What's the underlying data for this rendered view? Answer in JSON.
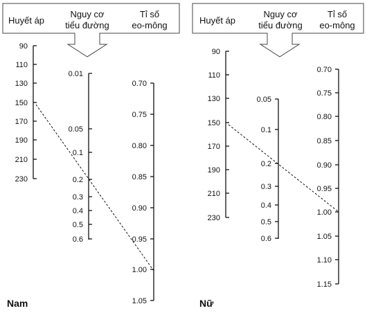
{
  "panels": [
    {
      "id": "male",
      "label": "Nam",
      "headers": {
        "bp": "Huyết áp",
        "risk": [
          "Nguy cơ",
          "tiểu đường"
        ],
        "whr": [
          "Tỉ số",
          "eo-mông"
        ]
      },
      "bp_ticks": [
        "90",
        "110",
        "130",
        "150",
        "170",
        "190",
        "210",
        "230"
      ],
      "risk_ticks": [
        "0.01",
        "0.05",
        "0.1",
        "0.2",
        "0.3",
        "0.4",
        "0.5",
        "0.6"
      ],
      "whr_ticks": [
        "0.70",
        "0.75",
        "0.80",
        "0.85",
        "0.90",
        "0.95",
        "1.00",
        "1.05"
      ],
      "example": {
        "bp": 150,
        "risk": 0.2,
        "whr": 1.0
      }
    },
    {
      "id": "female",
      "label": "Nữ",
      "headers": {
        "bp": "Huyết áp",
        "risk": [
          "Nguy cơ",
          "tiểu đường"
        ],
        "whr": [
          "Tỉ số",
          "eo-mông"
        ]
      },
      "bp_ticks": [
        "90",
        "110",
        "130",
        "150",
        "170",
        "190",
        "210",
        "230"
      ],
      "risk_ticks": [
        "0.05",
        "0.1",
        "0.2",
        "0.3",
        "0.4",
        "0.5",
        "0.6"
      ],
      "whr_ticks": [
        "0.70",
        "0.75",
        "0.80",
        "0.85",
        "0.90",
        "0.95",
        "1.00",
        "1.05",
        "1.10",
        "1.15"
      ],
      "example": {
        "bp": 150,
        "risk": 0.2,
        "whr": 1.0
      }
    }
  ]
}
